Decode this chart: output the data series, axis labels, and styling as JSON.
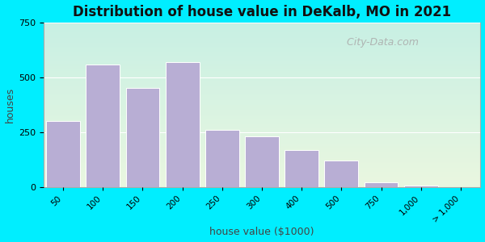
{
  "title": "Distribution of house value in DeKalb, MO in 2021",
  "xlabel": "house value ($1000)",
  "ylabel": "houses",
  "bar_values": [
    300,
    560,
    450,
    570,
    260,
    230,
    170,
    120,
    20,
    5
  ],
  "bar_labels": [
    "50",
    "100",
    "150",
    "200",
    "250",
    "300",
    "400",
    "500",
    "750",
    "1,000",
    "> 1,000"
  ],
  "bar_color": "#b8aed4",
  "bar_edgecolor": "#ffffff",
  "background_outer": "#00eeff",
  "background_inner_top": "#eaf7e0",
  "background_inner_bottom": "#c8f0e4",
  "ylim": [
    0,
    750
  ],
  "yticks": [
    0,
    250,
    500,
    750
  ],
  "title_fontsize": 12,
  "axis_label_fontsize": 9,
  "watermark_text": "  City-Data.com",
  "watermark_fontsize": 9
}
